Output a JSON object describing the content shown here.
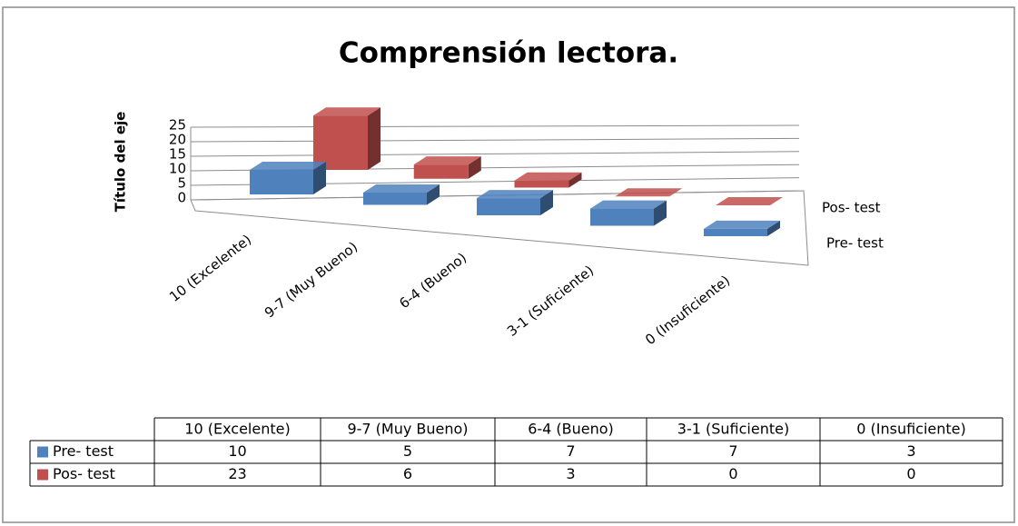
{
  "chart_data": {
    "type": "bar",
    "title": "Comprensión lectora.",
    "y_label": "Título del eje",
    "categories": [
      "10 (Excelente)",
      "9-7 (Muy Bueno)",
      "6-4 (Bueno)",
      "3-1 (Suficiente)",
      "0 (Insuficiente)"
    ],
    "series": [
      {
        "name": "Pre- test",
        "color": "#4f81bd",
        "values": [
          10,
          5,
          7,
          7,
          3
        ]
      },
      {
        "name": "Pos- test",
        "color": "#c0504d",
        "values": [
          23,
          6,
          3,
          0,
          0
        ]
      }
    ],
    "ylim": [
      0,
      25
    ],
    "yticks": [
      0,
      5,
      10,
      15,
      20,
      25
    ],
    "grid": true,
    "data_table": true
  }
}
